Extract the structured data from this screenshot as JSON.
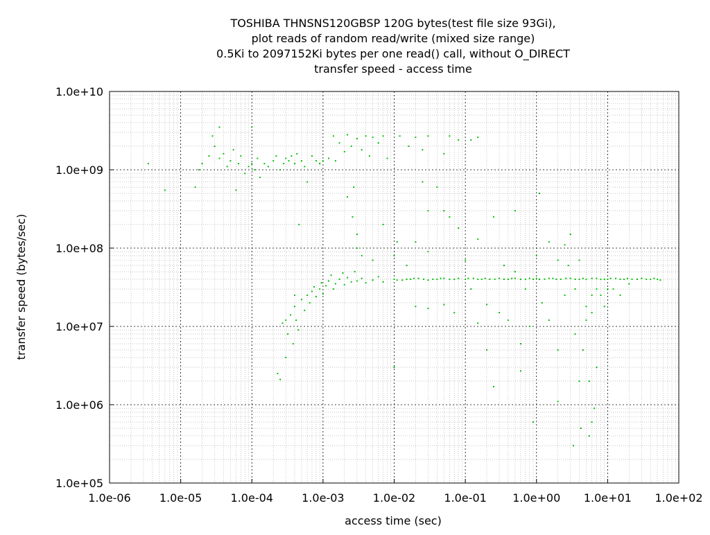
{
  "chart_data": {
    "type": "scatter",
    "title": [
      "TOSHIBA THNSNS120GBSP 120G bytes(test file size 93Gi),",
      "plot reads of random read/write (mixed size range)",
      "0.5Ki to 2097152Ki bytes per one read() call, without O_DIRECT",
      "transfer speed - access time"
    ],
    "xlabel": "access time (sec)",
    "ylabel": "transfer speed (bytes/sec)",
    "xscale": "log",
    "yscale": "log",
    "xlim": [
      1e-06,
      100.0
    ],
    "ylim": [
      100000.0,
      10000000000.0
    ],
    "xticks": [
      "1.0e-06",
      "1.0e-05",
      "1.0e-04",
      "1.0e-03",
      "1.0e-02",
      "1.0e-01",
      "1.0e+00",
      "1.0e+01",
      "1.0e+02"
    ],
    "yticks": [
      "1.0e+05",
      "1.0e+06",
      "1.0e+07",
      "1.0e+08",
      "1.0e+09",
      "1.0e+10"
    ],
    "grid": true,
    "point_color": "#00c000",
    "points": [
      [
        3.5e-06,
        1200000000.0
      ],
      [
        6e-06,
        550000000.0
      ],
      [
        1.6e-05,
        600000000.0
      ],
      [
        1.8e-05,
        1000000000.0
      ],
      [
        2e-05,
        1200000000.0
      ],
      [
        2.5e-05,
        1500000000.0
      ],
      [
        2.8e-05,
        2700000000.0
      ],
      [
        3e-05,
        2000000000.0
      ],
      [
        3.5e-05,
        3500000000.0
      ],
      [
        3.5e-05,
        1400000000.0
      ],
      [
        4e-05,
        1600000000.0
      ],
      [
        4.5e-05,
        1100000000.0
      ],
      [
        5e-05,
        1300000000.0
      ],
      [
        5.5e-05,
        1800000000.0
      ],
      [
        6e-05,
        550000000.0
      ],
      [
        6.5e-05,
        1200000000.0
      ],
      [
        7e-05,
        1500000000.0
      ],
      [
        8e-05,
        900000000.0
      ],
      [
        9e-05,
        1100000000.0
      ],
      [
        0.0001,
        1200000000.0
      ],
      [
        0.0001,
        3500000000.0
      ],
      [
        0.00011,
        1000000000.0
      ],
      [
        0.00012,
        1400000000.0
      ],
      [
        0.00013,
        800000000.0
      ],
      [
        0.00015,
        1200000000.0
      ],
      [
        0.00017,
        1100000000.0
      ],
      [
        0.0002,
        1300000000.0
      ],
      [
        0.00022,
        1500000000.0
      ],
      [
        0.00025,
        1000000000.0
      ],
      [
        0.00028,
        1200000000.0
      ],
      [
        0.0003,
        1400000000.0
      ],
      [
        0.00033,
        1300000000.0
      ],
      [
        0.00036,
        1500000000.0
      ],
      [
        0.0004,
        1200000000.0
      ],
      [
        0.00043,
        1600000000.0
      ],
      [
        0.00046,
        200000000.0
      ],
      [
        0.0005,
        1300000000.0
      ],
      [
        0.00055,
        1100000000.0
      ],
      [
        0.0006,
        700000000.0
      ],
      [
        0.0007,
        1500000000.0
      ],
      [
        0.0008,
        1300000000.0
      ],
      [
        0.0009,
        1200000000.0
      ],
      [
        0.001,
        1300000000.0
      ],
      [
        0.0012,
        1400000000.0
      ],
      [
        0.0014,
        2700000000.0
      ],
      [
        0.0015,
        1300000000.0
      ],
      [
        0.0017,
        2200000000.0
      ],
      [
        0.002,
        1700000000.0
      ],
      [
        0.0022,
        2800000000.0
      ],
      [
        0.0025,
        2000000000.0
      ],
      [
        0.0027,
        600000000.0
      ],
      [
        0.003,
        2500000000.0
      ],
      [
        0.0035,
        1800000000.0
      ],
      [
        0.004,
        2700000000.0
      ],
      [
        0.0045,
        1500000000.0
      ],
      [
        0.005,
        2600000000.0
      ],
      [
        0.006,
        2200000000.0
      ],
      [
        0.007,
        2700000000.0
      ],
      [
        0.008,
        1400000000.0
      ],
      [
        0.012,
        2700000000.0
      ],
      [
        0.016,
        2000000000.0
      ],
      [
        0.02,
        2600000000.0
      ],
      [
        0.025,
        1800000000.0
      ],
      [
        0.03,
        2700000000.0
      ],
      [
        0.05,
        1600000000.0
      ],
      [
        0.06,
        2700000000.0
      ],
      [
        0.08,
        2400000000.0
      ],
      [
        0.12,
        2400000000.0
      ],
      [
        0.15,
        2600000000.0
      ],
      [
        0.0022,
        450000000.0
      ],
      [
        0.0026,
        250000000.0
      ],
      [
        0.003,
        150000000.0
      ],
      [
        0.0035,
        80000000.0
      ],
      [
        0.007,
        200000000.0
      ],
      [
        0.011,
        120000000.0
      ],
      [
        0.025,
        700000000.0
      ],
      [
        0.03,
        300000000.0
      ],
      [
        0.04,
        600000000.0
      ],
      [
        0.06,
        250000000.0
      ],
      [
        0.00023,
        2500000.0
      ],
      [
        0.00025,
        2100000.0
      ],
      [
        0.00027,
        11000000.0
      ],
      [
        0.0003,
        4000000.0
      ],
      [
        0.0003,
        12000000.0
      ],
      [
        0.00032,
        8000000.0
      ],
      [
        0.00035,
        14000000.0
      ],
      [
        0.00038,
        6000000.0
      ],
      [
        0.0004,
        18000000.0
      ],
      [
        0.0004,
        25000000.0
      ],
      [
        0.00042,
        12000000.0
      ],
      [
        0.00045,
        9000000.0
      ],
      [
        0.0005,
        22000000.0
      ],
      [
        0.00055,
        16000000.0
      ],
      [
        0.0006,
        25000000.0
      ],
      [
        0.00065,
        20000000.0
      ],
      [
        0.0007,
        28000000.0
      ],
      [
        0.00075,
        32000000.0
      ],
      [
        0.0008,
        24000000.0
      ],
      [
        0.0009,
        30000000.0
      ],
      [
        0.00095,
        36000000.0
      ],
      [
        0.001,
        26000000.0
      ],
      [
        0.0011,
        33000000.0
      ],
      [
        0.0012,
        38000000.0
      ],
      [
        0.0013,
        45000000.0
      ],
      [
        0.0014,
        30000000.0
      ],
      [
        0.0015,
        35000000.0
      ],
      [
        0.0017,
        40000000.0
      ],
      [
        0.0019,
        48000000.0
      ],
      [
        0.002,
        34000000.0
      ],
      [
        0.0022,
        42000000.0
      ],
      [
        0.0025,
        37000000.0
      ],
      [
        0.0028,
        50000000.0
      ],
      [
        0.003,
        38000000.0
      ],
      [
        0.0035,
        41000000.0
      ],
      [
        0.004,
        36000000.0
      ],
      [
        0.005,
        39000000.0
      ],
      [
        0.006,
        43000000.0
      ],
      [
        0.007,
        37000000.0
      ],
      [
        0.01,
        40000000.0
      ],
      [
        0.011,
        39000000.0
      ],
      [
        0.013,
        39000000.0
      ],
      [
        0.015,
        40000000.0
      ],
      [
        0.017,
        40000000.0
      ],
      [
        0.019,
        41000000.0
      ],
      [
        0.022,
        41000000.0
      ],
      [
        0.026,
        40000000.0
      ],
      [
        0.03,
        39000000.0
      ],
      [
        0.035,
        40000000.0
      ],
      [
        0.04,
        40000000.0
      ],
      [
        0.045,
        41000000.0
      ],
      [
        0.05,
        41000000.0
      ],
      [
        0.06,
        40000000.0
      ],
      [
        0.07,
        40000000.0
      ],
      [
        0.08,
        41000000.0
      ],
      [
        0.1,
        40000000.0
      ],
      [
        0.11,
        41000000.0
      ],
      [
        0.13,
        41000000.0
      ],
      [
        0.15,
        40000000.0
      ],
      [
        0.17,
        40000000.0
      ],
      [
        0.19,
        41000000.0
      ],
      [
        0.22,
        40000000.0
      ],
      [
        0.26,
        40000000.0
      ],
      [
        0.3,
        41000000.0
      ],
      [
        0.35,
        40000000.0
      ],
      [
        0.4,
        40000000.0
      ],
      [
        0.45,
        41000000.0
      ],
      [
        0.5,
        41000000.0
      ],
      [
        0.6,
        40000000.0
      ],
      [
        0.7,
        40000000.0
      ],
      [
        0.8,
        41000000.0
      ],
      [
        0.9,
        40000000.0
      ],
      [
        1,
        41000000.0
      ],
      [
        1.1,
        40000000.0
      ],
      [
        1.3,
        40000000.0
      ],
      [
        1.5,
        41000000.0
      ],
      [
        1.7,
        41000000.0
      ],
      [
        1.9,
        40000000.0
      ],
      [
        2.2,
        40000000.0
      ],
      [
        2.6,
        41000000.0
      ],
      [
        3,
        41000000.0
      ],
      [
        3.5,
        40000000.0
      ],
      [
        4,
        40000000.0
      ],
      [
        4.5,
        41000000.0
      ],
      [
        5,
        40000000.0
      ],
      [
        6,
        41000000.0
      ],
      [
        7,
        41000000.0
      ],
      [
        8,
        40000000.0
      ],
      [
        9,
        40000000.0
      ],
      [
        10,
        40000000.0
      ],
      [
        11,
        41000000.0
      ],
      [
        13,
        41000000.0
      ],
      [
        15,
        40000000.0
      ],
      [
        17,
        40000000.0
      ],
      [
        19,
        41000000.0
      ],
      [
        22,
        40000000.0
      ],
      [
        26,
        40000000.0
      ],
      [
        30,
        41000000.0
      ],
      [
        35,
        40000000.0
      ],
      [
        40,
        40000000.0
      ],
      [
        45,
        41000000.0
      ],
      [
        50,
        40000000.0
      ],
      [
        55,
        39000000.0
      ],
      [
        0.02,
        18000000.0
      ],
      [
        0.03,
        17000000.0
      ],
      [
        0.05,
        19000000.0
      ],
      [
        0.07,
        15000000.0
      ],
      [
        0.1,
        70000000.0
      ],
      [
        0.12,
        30000000.0
      ],
      [
        0.15,
        11000000.0
      ],
      [
        0.2,
        19000000.0
      ],
      [
        0.25,
        250000000.0
      ],
      [
        0.3,
        15000000.0
      ],
      [
        0.35,
        60000000.0
      ],
      [
        0.4,
        12000000.0
      ],
      [
        0.5,
        50000000.0
      ],
      [
        0.6,
        6000000.0
      ],
      [
        0.7,
        30000000.0
      ],
      [
        0.8,
        10000000.0
      ],
      [
        0.9,
        600000.0
      ],
      [
        1,
        80000000.0
      ],
      [
        1.2,
        20000000.0
      ],
      [
        1.5,
        120000000.0
      ],
      [
        2,
        5000000.0
      ],
      [
        2.5,
        25000000.0
      ],
      [
        3,
        150000000.0
      ],
      [
        3.5,
        8000000.0
      ],
      [
        4,
        2000000.0
      ],
      [
        4.5,
        5000000.0
      ],
      [
        5,
        12000000.0
      ],
      [
        5.5,
        2000000.0
      ],
      [
        6,
        600000.0
      ],
      [
        6.5,
        900000.0
      ],
      [
        7,
        3000000.0
      ],
      [
        8,
        25000000.0
      ],
      [
        9,
        18000000.0
      ],
      [
        12,
        30000000.0
      ],
      [
        15,
        25000000.0
      ],
      [
        20,
        35000000.0
      ],
      [
        0.003,
        100000000.0
      ],
      [
        0.005,
        70000000.0
      ],
      [
        0.01,
        80000000.0
      ],
      [
        0.015,
        60000000.0
      ],
      [
        0.02,
        120000000.0
      ],
      [
        0.03,
        90000000.0
      ],
      [
        0.05,
        300000000.0
      ],
      [
        0.08,
        180000000.0
      ],
      [
        0.15,
        130000000.0
      ],
      [
        0.5,
        300000000.0
      ],
      [
        1.1,
        500000000.0
      ],
      [
        0.01,
        3000000.0
      ],
      [
        0.2,
        5000000.0
      ],
      [
        0.25,
        1700000.0
      ],
      [
        0.6,
        2700000.0
      ],
      [
        2,
        1100000.0
      ],
      [
        3.3,
        300000.0
      ],
      [
        5.5,
        400000.0
      ],
      [
        4.2,
        500000.0
      ],
      [
        1.5,
        12000000.0
      ],
      [
        2.8,
        60000000.0
      ],
      [
        6,
        25000000.0
      ],
      [
        7,
        30000000.0
      ],
      [
        4,
        70000000.0
      ],
      [
        5,
        18000000.0
      ],
      [
        6,
        15000000.0
      ],
      [
        10,
        30000000.0
      ],
      [
        3.5,
        30000000.0
      ],
      [
        2,
        70000000.0
      ],
      [
        2.5,
        110000000.0
      ]
    ]
  }
}
